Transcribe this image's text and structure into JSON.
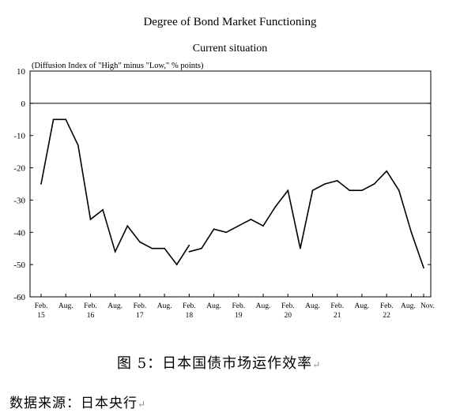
{
  "title": "Degree of Bond Market Functioning",
  "subtitle": "Current situation",
  "caption": "图 5：日本国债市场运作效率",
  "source": "数据来源：日本央行",
  "return_mark": "↵",
  "chart_data": {
    "type": "line",
    "ylabel": "(Diffusion Index of \"High\" minus \"Low,\" % points)",
    "ylim": [
      -60,
      10
    ],
    "yticks": [
      10,
      0,
      -10,
      -20,
      -30,
      -40,
      -50,
      -60
    ],
    "xlim": [
      0,
      31
    ],
    "xticks": [
      {
        "x": 0,
        "l1": "Feb.",
        "l2": "15"
      },
      {
        "x": 2,
        "l1": "Aug.",
        "l2": ""
      },
      {
        "x": 4,
        "l1": "Feb.",
        "l2": "16"
      },
      {
        "x": 6,
        "l1": "Aug.",
        "l2": ""
      },
      {
        "x": 8,
        "l1": "Feb.",
        "l2": "17"
      },
      {
        "x": 10,
        "l1": "Aug.",
        "l2": ""
      },
      {
        "x": 12,
        "l1": "Feb.",
        "l2": "18"
      },
      {
        "x": 14,
        "l1": "Aug.",
        "l2": ""
      },
      {
        "x": 16,
        "l1": "Feb.",
        "l2": "19"
      },
      {
        "x": 18,
        "l1": "Aug.",
        "l2": ""
      },
      {
        "x": 20,
        "l1": "Feb.",
        "l2": "20"
      },
      {
        "x": 22,
        "l1": "Aug.",
        "l2": ""
      },
      {
        "x": 24,
        "l1": "Feb.",
        "l2": "21"
      },
      {
        "x": 26,
        "l1": "Aug.",
        "l2": ""
      },
      {
        "x": 28,
        "l1": "Feb.",
        "l2": "22"
      },
      {
        "x": 30,
        "l1": "Aug.",
        "l2": ""
      },
      {
        "x": 31,
        "l1": "Nov.",
        "l2": ""
      }
    ],
    "series": [
      {
        "segments": [
          [
            [
              0,
              -25
            ],
            [
              1,
              -5
            ],
            [
              2,
              -5
            ],
            [
              3,
              -13
            ],
            [
              4,
              -36
            ],
            [
              5,
              -33
            ],
            [
              6,
              -46
            ],
            [
              7,
              -38
            ],
            [
              8,
              -43
            ],
            [
              9,
              -45
            ],
            [
              10,
              -45
            ],
            [
              11,
              -50
            ],
            [
              12,
              -44
            ]
          ],
          [
            [
              12,
              -46
            ],
            [
              13,
              -45
            ],
            [
              14,
              -39
            ],
            [
              15,
              -40
            ],
            [
              16,
              -38
            ],
            [
              17,
              -36
            ],
            [
              18,
              -38
            ],
            [
              19,
              -32
            ],
            [
              20,
              -27
            ],
            [
              21,
              -45
            ],
            [
              22,
              -27
            ],
            [
              23,
              -25
            ],
            [
              24,
              -24
            ],
            [
              25,
              -27
            ],
            [
              26,
              -27
            ],
            [
              27,
              -25
            ],
            [
              28,
              -21
            ],
            [
              29,
              -27
            ],
            [
              30,
              -40
            ],
            [
              31,
              -51
            ]
          ]
        ]
      }
    ],
    "zero_line": true,
    "grid": false,
    "legend": "none"
  }
}
